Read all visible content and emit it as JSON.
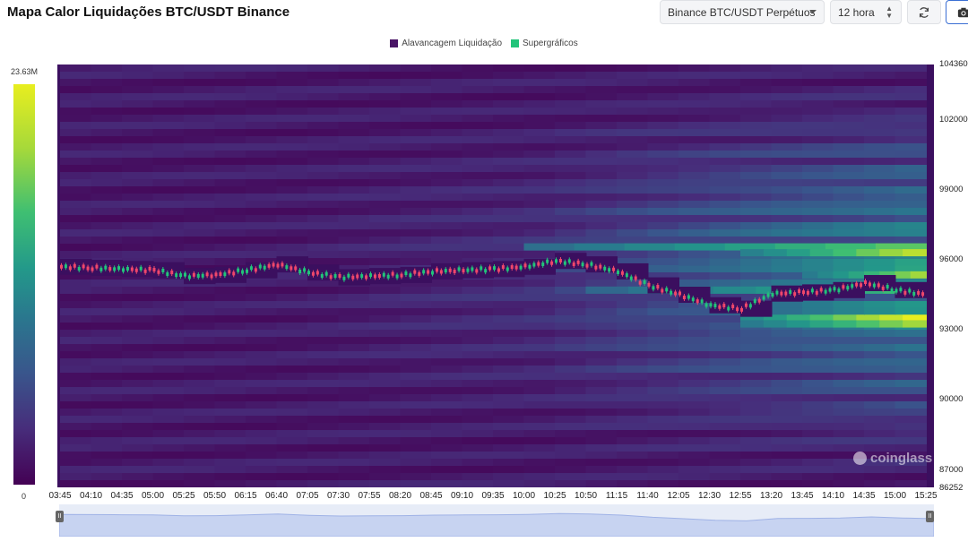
{
  "header": {
    "title": "Mapa Calor Liquidações BTC/USDT Binance",
    "exchange_select": "Binance BTC/USDT Perpétuos",
    "timeframe_select": "12 hora",
    "refresh_icon": "refresh-icon",
    "camera_icon": "camera-icon"
  },
  "legend": {
    "items": [
      {
        "label": "Alavancagem Liquidação",
        "color": "#4a1566"
      },
      {
        "label": "Supergráficos",
        "color": "#22c47a"
      }
    ]
  },
  "colorbar": {
    "max_label": "23.63M",
    "min_label": "0"
  },
  "yaxis": {
    "labels": [
      "104360",
      "102000",
      "99000",
      "96000",
      "93000",
      "90000",
      "87000",
      "86252"
    ]
  },
  "xaxis": {
    "labels": [
      "03:45",
      "04:10",
      "04:35",
      "05:00",
      "05:25",
      "05:50",
      "06:15",
      "06:40",
      "07:05",
      "07:30",
      "07:55",
      "08:20",
      "08:45",
      "09:10",
      "09:35",
      "10:00",
      "10:25",
      "10:50",
      "11:15",
      "11:40",
      "12:05",
      "12:30",
      "12:55",
      "13:20",
      "13:45",
      "14:10",
      "14:35",
      "15:00",
      "15:25"
    ]
  },
  "watermark": "coinglass",
  "chart_data": {
    "type": "heatmap",
    "title": "Mapa Calor Liquidações BTC/USDT Binance",
    "ylim": [
      86252,
      104360
    ],
    "colorbar_range": [
      0,
      23630000
    ],
    "x": [
      "03:45",
      "04:10",
      "04:35",
      "05:00",
      "05:25",
      "05:50",
      "06:15",
      "06:40",
      "07:05",
      "07:30",
      "07:55",
      "08:20",
      "08:45",
      "09:10",
      "09:35",
      "10:00",
      "10:25",
      "10:50",
      "11:15",
      "11:40",
      "12:05",
      "12:30",
      "12:55",
      "13:20",
      "13:45",
      "14:10",
      "14:35",
      "15:00",
      "15:25"
    ],
    "price_series": {
      "name": "BTC/USDT",
      "values": [
        95700,
        95650,
        95600,
        95550,
        95300,
        95350,
        95550,
        95800,
        95450,
        95250,
        95300,
        95350,
        95500,
        95550,
        95600,
        95700,
        95950,
        95800,
        95500,
        94900,
        94500,
        94050,
        93900,
        94550,
        94600,
        94700,
        95000,
        94700,
        94500
      ]
    },
    "liquidation_bands": [
      {
        "price": 96550,
        "level": 0.75,
        "from": "10:00"
      },
      {
        "price": 96300,
        "level": 0.9,
        "from": "12:55"
      },
      {
        "price": 95900,
        "level": 0.6,
        "from": "12:05"
      },
      {
        "price": 95350,
        "level": 0.85,
        "from": "13:45"
      },
      {
        "price": 94700,
        "level": 0.7,
        "from": "10:50"
      },
      {
        "price": 93550,
        "level": 1.0,
        "from": "12:55"
      },
      {
        "price": 93250,
        "level": 0.85,
        "from": "12:55"
      },
      {
        "price": 93800,
        "level": 0.55,
        "from": "12:05"
      }
    ]
  }
}
